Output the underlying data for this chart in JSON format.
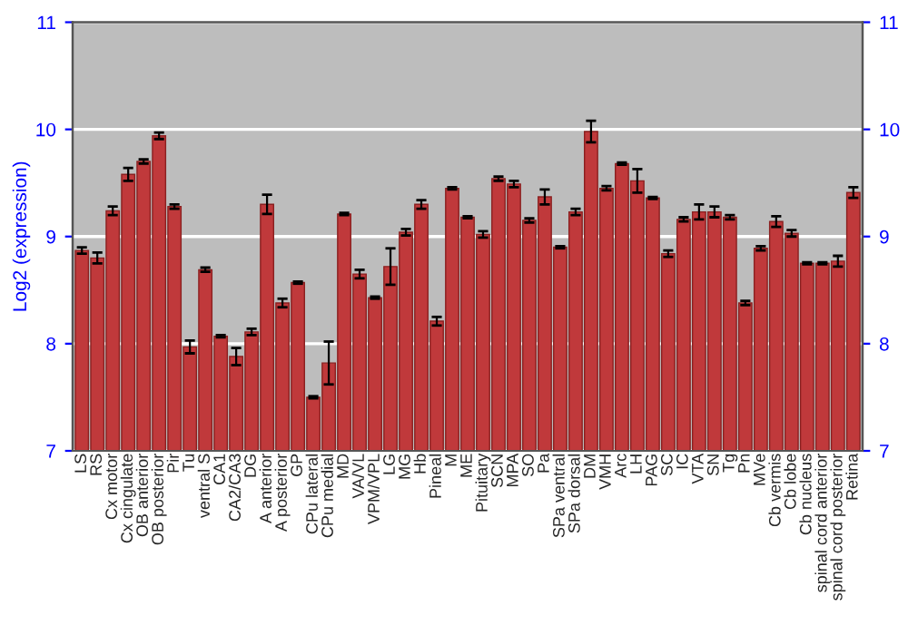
{
  "chart_data": {
    "type": "bar",
    "ylabel": "Log2 (expression)",
    "categories": [
      "LS",
      "RS",
      "Cx motor",
      "Cx cingulate",
      "OB anterior",
      "OB posterior",
      "Pir",
      "Tu",
      "ventral S",
      "CA1",
      "CA2/CA3",
      "DG",
      "A anterior",
      "A posterior",
      "GP",
      "CPu lateral",
      "CPu medial",
      "MD",
      "VA/VL",
      "VPM/VPL",
      "LG",
      "MG",
      "Hb",
      "Pineal",
      "M",
      "ME",
      "Pituitary",
      "SCN",
      "MPA",
      "SO",
      "Pa",
      "SPa ventral",
      "SPa dorsal",
      "DM",
      "VMH",
      "Arc",
      "LH",
      "PAG",
      "SC",
      "IC",
      "VTA",
      "SN",
      "Tg",
      "Pn",
      "MVe",
      "Cb vermis",
      "Cb lobe",
      "Cb nucleus",
      "spinal cord anterior",
      "spinal cord posterior",
      "Retina"
    ],
    "values": [
      8.87,
      8.8,
      9.24,
      9.58,
      9.7,
      9.94,
      9.28,
      7.97,
      8.69,
      8.07,
      7.88,
      8.11,
      9.3,
      8.38,
      8.57,
      7.5,
      7.82,
      9.21,
      8.65,
      8.43,
      8.72,
      9.04,
      9.3,
      8.21,
      9.45,
      9.18,
      9.02,
      9.54,
      9.49,
      9.15,
      9.37,
      8.9,
      9.23,
      9.98,
      9.45,
      9.68,
      9.52,
      9.36,
      8.84,
      9.16,
      9.23,
      9.23,
      9.18,
      8.38,
      8.89,
      9.14,
      9.03,
      8.75,
      8.75,
      8.77,
      9.41
    ],
    "errors": [
      0.03,
      0.05,
      0.04,
      0.06,
      0.02,
      0.03,
      0.02,
      0.06,
      0.02,
      0.01,
      0.08,
      0.03,
      0.09,
      0.04,
      0.01,
      0.01,
      0.2,
      0.01,
      0.04,
      0.01,
      0.17,
      0.03,
      0.04,
      0.04,
      0.01,
      0.01,
      0.03,
      0.02,
      0.03,
      0.02,
      0.07,
      0.01,
      0.03,
      0.1,
      0.02,
      0.01,
      0.11,
      0.01,
      0.03,
      0.02,
      0.07,
      0.05,
      0.02,
      0.02,
      0.02,
      0.05,
      0.03,
      0.01,
      0.01,
      0.05,
      0.05
    ],
    "color": "#c0393b",
    "ylim": [
      7,
      11
    ],
    "yticks": [
      7,
      8,
      9,
      10,
      11
    ],
    "y2lim": [
      7,
      11
    ],
    "y2ticks": [
      7,
      8,
      9,
      10,
      11
    ],
    "grid": "y"
  }
}
